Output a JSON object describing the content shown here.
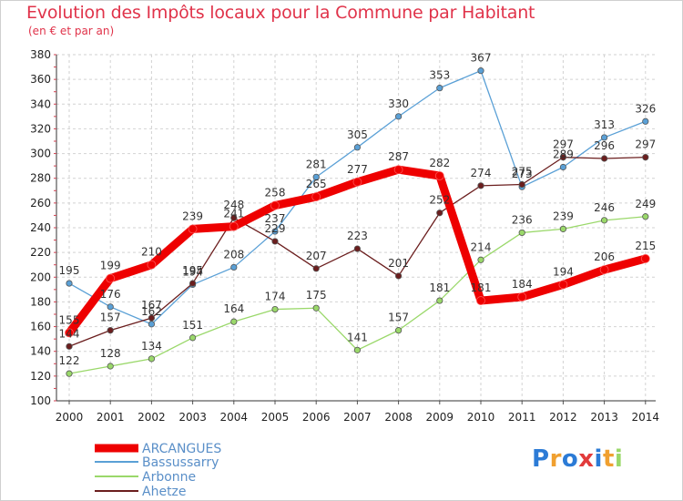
{
  "chart_data": {
    "type": "line",
    "title": "Evolution des Impôts locaux pour la Commune par Habitant",
    "subtitle": "(en € et par an)",
    "x": [
      "2000",
      "2001",
      "2002",
      "2003",
      "2004",
      "2005",
      "2006",
      "2007",
      "2008",
      "2009",
      "2010",
      "2011",
      "2012",
      "2013",
      "2014"
    ],
    "ylim": [
      100,
      380
    ],
    "yticks": [
      100,
      120,
      140,
      160,
      180,
      200,
      220,
      240,
      260,
      280,
      300,
      320,
      340,
      360,
      380
    ],
    "grid": true,
    "legend_position": "bottom-left",
    "series": [
      {
        "name": "ARCANGUES",
        "color": "#ee0000",
        "values": [
          155,
          199,
          210,
          239,
          241,
          258,
          265,
          277,
          287,
          282,
          181,
          184,
          194,
          206,
          215
        ]
      },
      {
        "name": "Bassussarry",
        "color": "#5aa0d6",
        "values": [
          195,
          176,
          162,
          194,
          208,
          237,
          281,
          305,
          330,
          353,
          367,
          273,
          289,
          313,
          326
        ]
      },
      {
        "name": "Arbonne",
        "color": "#9ad86a",
        "values": [
          122,
          128,
          134,
          151,
          164,
          174,
          175,
          141,
          157,
          181,
          214,
          236,
          239,
          246,
          249
        ]
      },
      {
        "name": "Ahetze",
        "color": "#6b1e1e",
        "values": [
          144,
          157,
          167,
          195,
          248,
          229,
          207,
          223,
          201,
          252,
          274,
          275,
          297,
          296,
          297
        ]
      }
    ]
  },
  "logo": {
    "text": "Proxiti",
    "colors": [
      "#2c7bd6",
      "#f0a030",
      "#2c7bd6",
      "#e23b3b",
      "#2c7bd6",
      "#f0a030",
      "#9ad86a"
    ]
  }
}
